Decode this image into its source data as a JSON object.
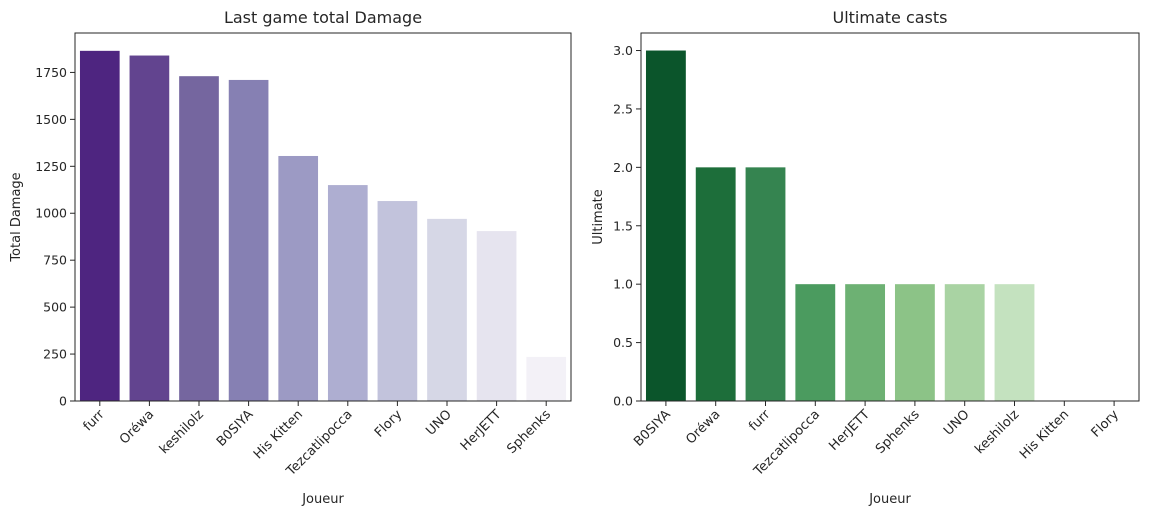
{
  "chart_data": [
    {
      "type": "bar",
      "title": "Last game total Damage",
      "xlabel": "Joueur",
      "ylabel": "Total Damage",
      "categories": [
        "furr",
        "Oréwa",
        "keshilolz",
        "B0SIYA",
        "His Kitten",
        "Tezcatlipocca",
        "Flory",
        "UNO",
        "HerJETT",
        "Sphenks"
      ],
      "values": [
        1865,
        1840,
        1730,
        1710,
        1305,
        1150,
        1065,
        970,
        905,
        235
      ],
      "ylim": [
        0,
        1960
      ],
      "yticks": [
        0,
        250,
        500,
        750,
        1000,
        1250,
        1500,
        1750
      ],
      "colors": [
        "#4e2580",
        "#62448f",
        "#75669f",
        "#8680b3",
        "#9c9ac4",
        "#aeaed1",
        "#c2c3dc",
        "#d6d7e6",
        "#e6e4ef",
        "#f3f1f7"
      ],
      "grid": false
    },
    {
      "type": "bar",
      "title": "Ultimate casts",
      "xlabel": "Joueur",
      "ylabel": "Ultimate",
      "categories": [
        "B0SIYA",
        "Oréwa",
        "furr",
        "Tezcatlipocca",
        "HerJETT",
        "Sphenks",
        "UNO",
        "keshilolz",
        "His Kitten",
        "Flory"
      ],
      "values": [
        3,
        2,
        2,
        1,
        1,
        1,
        1,
        1,
        0,
        0
      ],
      "ylim": [
        0,
        3.15
      ],
      "yticks": [
        "0.0",
        "0.5",
        "1.0",
        "1.5",
        "2.0",
        "2.5",
        "3.0"
      ],
      "colors": [
        "#0b552b",
        "#1d6e3a",
        "#358450",
        "#4b9b5f",
        "#6db173",
        "#8cc387",
        "#a9d3a3",
        "#c4e2bf",
        "#e2f1dc",
        "#f2f9ee"
      ],
      "grid": false
    }
  ]
}
